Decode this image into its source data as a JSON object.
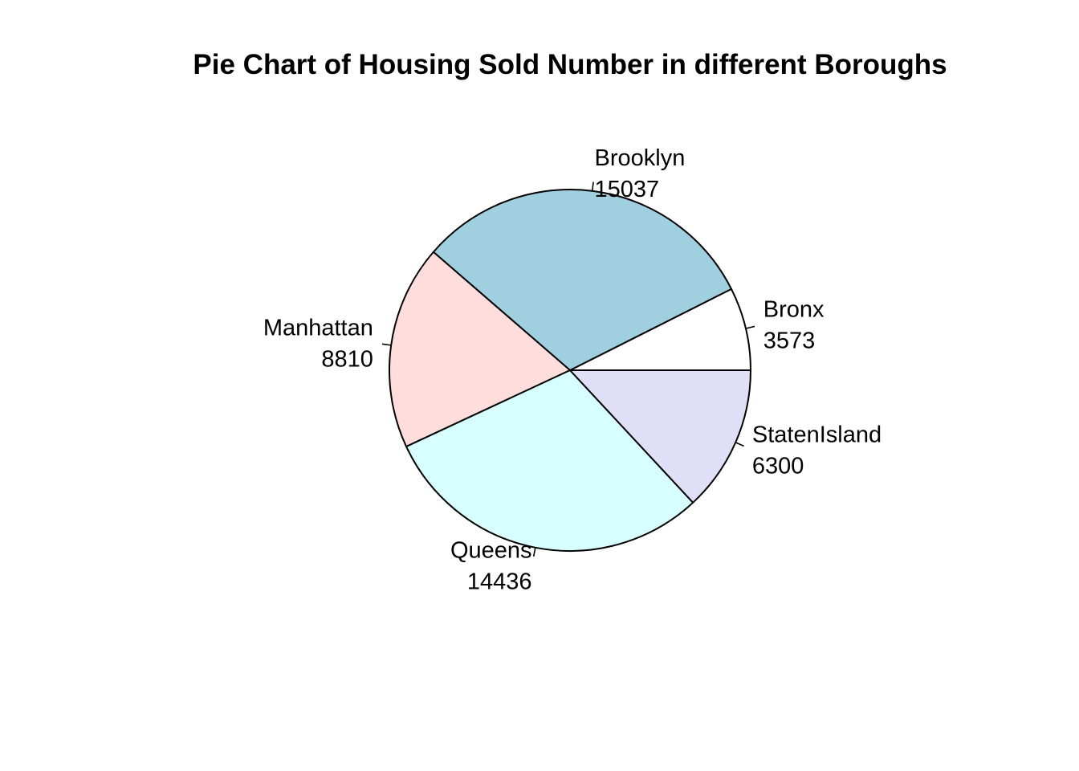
{
  "chart_data": {
    "type": "pie",
    "title": "Pie Chart of Housing Sold Number in different Boroughs",
    "slices": [
      {
        "label": "Bronx",
        "value": 3573,
        "value_label": "3573",
        "color": "#ffffff"
      },
      {
        "label": "Brooklyn",
        "value": 15037,
        "value_label": "15037",
        "color": "#a0cfe0"
      },
      {
        "label": "Manhattan",
        "value": 8810,
        "value_label": "8810",
        "color": "#ffdddd"
      },
      {
        "label": "Queens",
        "value": 14436,
        "value_label": "14436",
        "color": "#d8ffff"
      },
      {
        "label": "StatenIsland",
        "value": 6300,
        "value_label": "6300",
        "color": "#e0dff8"
      }
    ],
    "start_angle_deg": 0,
    "direction": "counterclockwise",
    "border_color": "#000000",
    "legend": "none"
  }
}
